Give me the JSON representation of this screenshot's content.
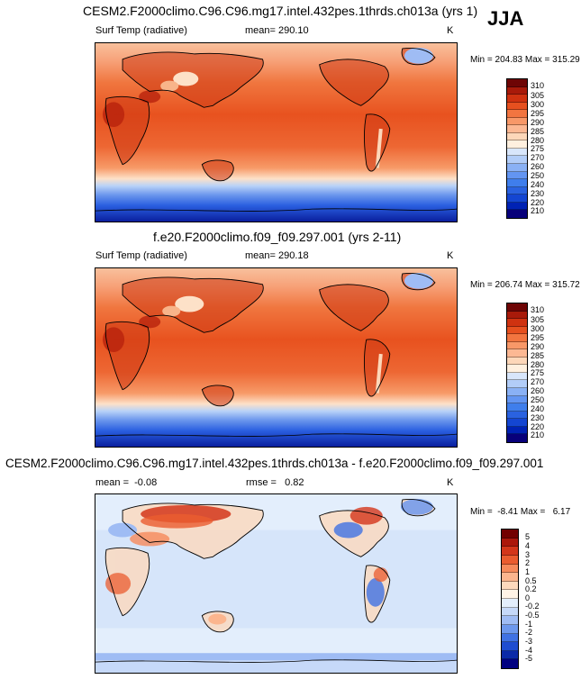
{
  "season": "JJA",
  "colors": {
    "temp_scale": [
      "#08007a",
      "#0022b4",
      "#1446d2",
      "#2a62e0",
      "#3f7eec",
      "#6395f2",
      "#8ab1f5",
      "#b2cdf8",
      "#d8e6fb",
      "#fff0df",
      "#fdd7b9",
      "#fcb893",
      "#f89868",
      "#f27540",
      "#e6501f",
      "#cf3210",
      "#a81a0a",
      "#6e0505"
    ],
    "diff_scale": [
      "#000080",
      "#0b2aa8",
      "#1f4dd0",
      "#4072e3",
      "#6d98ed",
      "#9fbcf4",
      "#c6d9f9",
      "#e3eefc",
      "#fff3e6",
      "#fdd9bd",
      "#fbb58e",
      "#f68a5b",
      "#ea5c2f",
      "#d3361a",
      "#ab170b",
      "#720000"
    ]
  },
  "panels": [
    {
      "title": "CESM2.F2000climo.C96.C96.mg17.intel.432pes.1thrds.ch013a (yrs 1)",
      "left_label": "Surf Temp (radiative)",
      "center_label": "mean= 290.10",
      "right_label": "K",
      "minmax": "Min = 204.83 Max = 315.29",
      "colorbar_labels": [
        "310",
        "305",
        "300",
        "295",
        "290",
        "285",
        "280",
        "275",
        "270",
        "260",
        "250",
        "240",
        "230",
        "220",
        "210"
      ]
    },
    {
      "title": "f.e20.F2000climo.f09_f09.297.001 (yrs 2-11)",
      "left_label": "Surf Temp (radiative)",
      "center_label": "mean= 290.18",
      "right_label": "K",
      "minmax": "Min = 206.74 Max = 315.72",
      "colorbar_labels": [
        "310",
        "305",
        "300",
        "295",
        "290",
        "285",
        "280",
        "275",
        "270",
        "260",
        "250",
        "240",
        "230",
        "220",
        "210"
      ]
    },
    {
      "title": "CESM2.F2000climo.C96.C96.mg17.intel.432pes.1thrds.ch013a - f.e20.F2000climo.f09_f09.297.001",
      "left_label": "mean =  -0.08",
      "center_label": "rmse =   0.82",
      "right_label": "K",
      "minmax": "Min =  -8.41 Max =   6.17",
      "colorbar_labels": [
        "5",
        "4",
        "3",
        "2",
        "1",
        "0.5",
        "0.2",
        "0",
        "-0.2",
        "-0.5",
        "-1",
        "-2",
        "-3",
        "-4",
        "-5"
      ]
    }
  ],
  "chart_data": [
    {
      "type": "heatmap",
      "title": "CESM2.F2000climo.C96.C96.mg17.intel.432pes.1thrds.ch013a (yrs 1)",
      "variable": "Surf Temp (radiative)",
      "units": "K",
      "mean": 290.1,
      "min": 204.83,
      "max": 315.29,
      "levels": [
        210,
        220,
        230,
        240,
        250,
        260,
        270,
        275,
        280,
        285,
        290,
        295,
        300,
        305,
        310
      ]
    },
    {
      "type": "heatmap",
      "title": "f.e20.F2000climo.f09_f09.297.001 (yrs 2-11)",
      "variable": "Surf Temp (radiative)",
      "units": "K",
      "mean": 290.18,
      "min": 206.74,
      "max": 315.72,
      "levels": [
        210,
        220,
        230,
        240,
        250,
        260,
        270,
        275,
        280,
        285,
        290,
        295,
        300,
        305,
        310
      ]
    },
    {
      "type": "heatmap",
      "title": "CESM2.F2000climo.C96.C96.mg17.intel.432pes.1thrds.ch013a - f.e20.F2000climo.f09_f09.297.001",
      "units": "K",
      "mean": -0.08,
      "rmse": 0.82,
      "min": -8.41,
      "max": 6.17,
      "levels": [
        -5,
        -4,
        -3,
        -2,
        -1,
        -0.5,
        -0.2,
        0,
        0.2,
        0.5,
        1,
        2,
        3,
        4,
        5
      ]
    }
  ]
}
